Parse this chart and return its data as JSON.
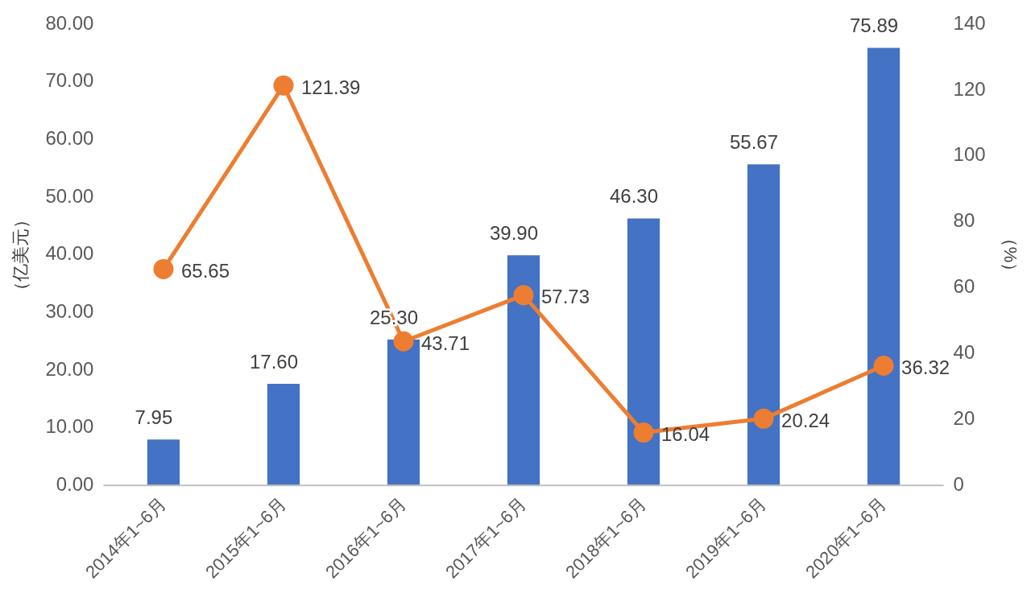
{
  "chart_data": {
    "type": "bar",
    "ylabel": "（亿美元）",
    "y2label": "（%）",
    "categories": [
      "2014年1~6月",
      "2015年1~6月",
      "2016年1~6月",
      "2017年1~6月",
      "2018年1~6月",
      "2019年1~6月",
      "2020年1~6月"
    ],
    "series": [
      {
        "color": "#4472c4",
        "values": [
          7.95,
          17.6,
          25.3,
          39.9,
          46.3,
          55.67,
          75.89
        ],
        "value_labels": [
          "7.95",
          "17.60",
          "25.30",
          "39.90",
          "46.30",
          "55.67",
          "75.89"
        ]
      },
      {
        "type": "line",
        "axis": "y2",
        "color": "#ed7d31",
        "marker": "circle",
        "values": [
          65.65,
          121.39,
          43.71,
          57.73,
          16.04,
          20.24,
          36.32
        ],
        "value_labels": [
          "65.65",
          "121.39",
          "43.71",
          "57.73",
          "16.04",
          "20.24",
          "36.32"
        ]
      }
    ],
    "ylim": [
      0,
      80
    ],
    "yticks": [
      {
        "value": 0,
        "label": "0.00"
      },
      {
        "value": 10,
        "label": "10.00"
      },
      {
        "value": 20,
        "label": "20.00"
      },
      {
        "value": 30,
        "label": "30.00"
      },
      {
        "value": 40,
        "label": "40.00"
      },
      {
        "value": 50,
        "label": "50.00"
      },
      {
        "value": 60,
        "label": "60.00"
      },
      {
        "value": 70,
        "label": "70.00"
      },
      {
        "value": 80,
        "label": "80.00"
      }
    ],
    "y2lim": [
      0,
      140
    ],
    "y2ticks": [
      0,
      20,
      40,
      60,
      80,
      100,
      120,
      140
    ],
    "grid": false,
    "legend": false
  }
}
